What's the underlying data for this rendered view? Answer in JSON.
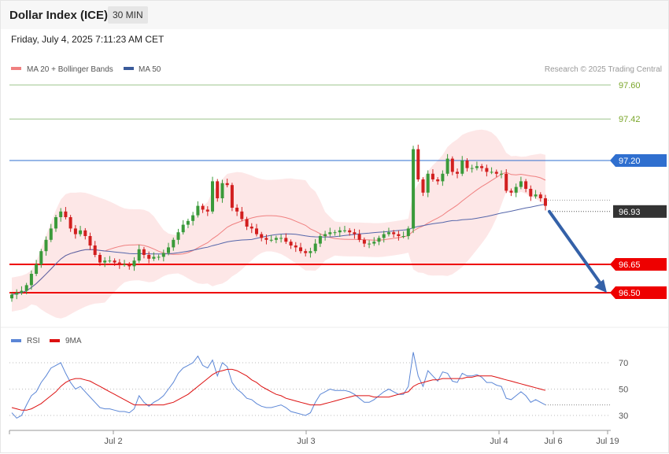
{
  "header": {
    "instrument": "Dollar Index (ICE)",
    "timeframe": "30 MIN"
  },
  "datetime": "Friday, July 4, 2025 7:11:23 AM CET",
  "credit": "Research © 2025 Trading Central",
  "colors": {
    "up": "#3a9a3a",
    "down": "#d21f1f",
    "blue_level": "#2f6fcf",
    "red_level": "#ee0000",
    "green_level": "#9cc48c",
    "arrow": "#3461a8",
    "bollinger_fill": "#fde3e3",
    "ma20": "#f08080",
    "ma50": "#5566aa",
    "rsi": "#5b86d6",
    "rsi_ma": "#dd1111"
  },
  "chart_data": [
    {
      "type": "candlestick",
      "title": "",
      "legend": [
        {
          "label": "MA 20 + Bollinger Bands",
          "color": "#f08080"
        },
        {
          "label": "MA 50",
          "color": "#3a5a9a"
        }
      ],
      "legend_position": "top-left",
      "price_axis_side": "right",
      "ylim": [
        96.37,
        97.7
      ],
      "x_tick_labels": [
        "Jul 2",
        "Jul 3",
        "Jul 4",
        "Jul 6",
        "Jul 19"
      ],
      "levels": [
        {
          "label": "97.60",
          "value": 97.6,
          "kind": "resistance-green"
        },
        {
          "label": "97.42",
          "value": 97.42,
          "kind": "resistance-green"
        },
        {
          "label": "97.20",
          "value": 97.2,
          "kind": "pivot-blue"
        },
        {
          "label": "96.93",
          "value": 96.93,
          "kind": "last-price"
        },
        {
          "label": "96.65",
          "value": 96.65,
          "kind": "support-red"
        },
        {
          "label": "96.50",
          "value": 96.5,
          "kind": "support-red"
        }
      ],
      "arrow": {
        "from": 96.93,
        "to": 96.5,
        "direction": "down"
      },
      "candles_close": [
        96.49,
        96.5,
        96.51,
        96.54,
        96.6,
        96.65,
        96.72,
        96.78,
        96.84,
        96.9,
        96.93,
        96.9,
        96.84,
        96.81,
        96.83,
        96.8,
        96.75,
        96.7,
        96.66,
        96.67,
        96.67,
        96.66,
        96.65,
        96.65,
        96.64,
        96.67,
        96.73,
        96.7,
        96.68,
        96.69,
        96.69,
        96.71,
        96.74,
        96.78,
        96.82,
        96.86,
        96.88,
        96.91,
        96.96,
        96.94,
        96.93,
        97.09,
        97.0,
        97.08,
        97.07,
        96.95,
        96.93,
        96.89,
        96.85,
        96.84,
        96.81,
        96.79,
        96.78,
        96.78,
        96.79,
        96.79,
        96.77,
        96.75,
        96.74,
        96.72,
        96.71,
        96.72,
        96.76,
        96.8,
        96.81,
        96.82,
        96.82,
        96.83,
        96.83,
        96.82,
        96.81,
        96.78,
        96.76,
        96.76,
        96.77,
        96.79,
        96.81,
        96.82,
        96.81,
        96.8,
        96.8,
        96.84,
        97.26,
        97.1,
        97.03,
        97.13,
        97.1,
        97.09,
        97.13,
        97.21,
        97.14,
        97.13,
        97.2,
        97.16,
        97.16,
        97.17,
        97.16,
        97.14,
        97.14,
        97.13,
        97.13,
        97.04,
        97.03,
        97.06,
        97.09,
        97.05,
        97.01,
        97.02,
        97.0,
        96.96
      ]
    },
    {
      "type": "line",
      "title": "",
      "legend": [
        {
          "label": "RSI",
          "color": "#5b86d6"
        },
        {
          "label": "9MA",
          "color": "#dd1111"
        }
      ],
      "y_tick_labels": [
        "70",
        "50",
        "30"
      ],
      "ylim": [
        20,
        80
      ],
      "series": [
        {
          "name": "RSI",
          "values": [
            32,
            28,
            30,
            38,
            45,
            48,
            55,
            60,
            66,
            68,
            70,
            62,
            55,
            50,
            52,
            48,
            44,
            40,
            36,
            35,
            35,
            34,
            33,
            33,
            32,
            35,
            45,
            40,
            37,
            40,
            42,
            45,
            50,
            55,
            62,
            66,
            68,
            70,
            75,
            68,
            66,
            72,
            60,
            70,
            67,
            55,
            50,
            47,
            43,
            42,
            39,
            37,
            36,
            36,
            37,
            38,
            36,
            33,
            32,
            31,
            30,
            32,
            40,
            46,
            48,
            50,
            49,
            49,
            49,
            48,
            46,
            43,
            40,
            40,
            42,
            45,
            48,
            50,
            48,
            46,
            46,
            52,
            78,
            60,
            52,
            64,
            60,
            56,
            63,
            62,
            56,
            55,
            62,
            60,
            60,
            61,
            59,
            55,
            55,
            53,
            52,
            43,
            42,
            45,
            48,
            45,
            40,
            42,
            40,
            38
          ]
        },
        {
          "name": "9MA",
          "values": [
            36,
            35,
            34,
            34,
            35,
            37,
            39,
            42,
            45,
            48,
            52,
            55,
            57,
            58,
            58,
            57,
            56,
            54,
            52,
            50,
            48,
            46,
            44,
            42,
            40,
            38,
            38,
            38,
            38,
            38,
            38,
            38,
            39,
            40,
            42,
            44,
            46,
            49,
            52,
            55,
            58,
            61,
            63,
            64,
            65,
            65,
            64,
            62,
            60,
            57,
            55,
            52,
            50,
            48,
            46,
            45,
            43,
            42,
            41,
            40,
            39,
            38,
            38,
            38,
            39,
            40,
            41,
            42,
            43,
            44,
            45,
            45,
            45,
            45,
            44,
            44,
            44,
            44,
            45,
            46,
            47,
            48,
            52,
            54,
            55,
            56,
            57,
            57,
            58,
            58,
            58,
            58,
            58,
            59,
            59,
            60,
            60,
            60,
            60,
            59,
            58,
            57,
            56,
            55,
            54,
            53,
            52,
            51,
            50,
            49
          ]
        }
      ]
    }
  ]
}
